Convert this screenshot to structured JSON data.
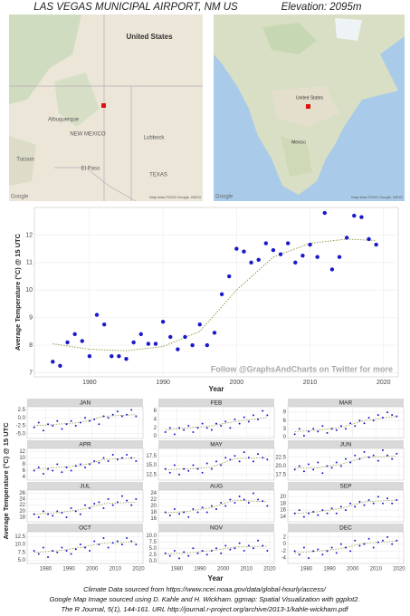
{
  "header": {
    "title": "LAS VEGAS MUNICIPAL AIRPORT, NM US",
    "elevation": "Elevation: 2095m"
  },
  "maps": [
    {
      "labels": [
        "United States",
        "Albuquerque",
        "NEW MEXICO",
        "Lubbock",
        "Tucson",
        "El Paso",
        "TEXAS"
      ],
      "credit": "Map data ©2020 Google, INEGI",
      "logo": "Google"
    },
    {
      "labels": [
        "United States",
        "Mexico"
      ],
      "credit": "Map data ©2020 Google, INEGI",
      "logo": "Google"
    }
  ],
  "chart_data": [
    {
      "type": "scatter",
      "xlabel": "Year",
      "ylabel": "Average Temperature (°C) @ 15 UTC",
      "annotation": "Follow @GraphsAndCharts on Twitter for more",
      "x": [
        1975,
        1976,
        1977,
        1978,
        1979,
        1980,
        1981,
        1982,
        1983,
        1984,
        1985,
        1986,
        1987,
        1988,
        1989,
        1990,
        1991,
        1992,
        1993,
        1994,
        1995,
        1996,
        1997,
        1998,
        1999,
        2000,
        2001,
        2002,
        2003,
        2004,
        2005,
        2006,
        2007,
        2008,
        2009,
        2010,
        2011,
        2012,
        2013,
        2014,
        2015,
        2016,
        2017,
        2018,
        2019
      ],
      "values": [
        7.4,
        7.25,
        8.1,
        8.4,
        8.15,
        7.6,
        9.1,
        8.75,
        7.6,
        7.6,
        7.5,
        8.1,
        8.4,
        8.05,
        8.05,
        8.85,
        8.3,
        7.85,
        8.3,
        8.0,
        8.75,
        8.0,
        8.45,
        9.85,
        10.5,
        11.5,
        11.4,
        11.0,
        11.1,
        11.7,
        11.45,
        11.3,
        11.7,
        11.0,
        11.25,
        11.65,
        11.2,
        12.8,
        10.75,
        11.2,
        11.9,
        12.7,
        12.65,
        11.85,
        11.65
      ],
      "color": "#1a1acc",
      "trend_x": [
        1975,
        1980,
        1985,
        1990,
        1995,
        2000,
        2005,
        2010,
        2015,
        2019
      ],
      "trend": [
        8.05,
        7.85,
        7.8,
        7.95,
        8.5,
        10,
        11.2,
        11.7,
        11.85,
        11.8
      ],
      "trend_color": "#9a9a4a",
      "xlim": [
        1972.5,
        2022
      ],
      "xticks": [
        1980,
        1990,
        2000,
        2010,
        2020
      ],
      "ylim": [
        6.85,
        13
      ],
      "yticks": [
        7,
        8,
        9,
        10,
        11,
        12
      ],
      "grid": true
    },
    {
      "type": "scatter",
      "xlabel": "Year",
      "ylabel": "Average Temperature (°C) @ 15 UTC",
      "x": [
        1975,
        1977,
        1979,
        1981,
        1983,
        1985,
        1987,
        1989,
        1991,
        1993,
        1995,
        1997,
        1999,
        2001,
        2003,
        2005,
        2007,
        2009,
        2011,
        2013,
        2015,
        2017,
        2019
      ],
      "xlim": [
        1972,
        2022
      ],
      "xticks": [
        1980,
        1990,
        2000,
        2010,
        2020
      ],
      "trend_x": [
        1975,
        1985,
        1995,
        2005,
        2019
      ],
      "color": "#1a1acc",
      "trend_color": "#9a9a4a",
      "grid": true,
      "panels": [
        {
          "title": "JAN",
          "ylim": [
            -6.5,
            3.5
          ],
          "yticks": [
            {
              "value": -5,
              "label": "-5.0"
            },
            {
              "value": -2.5,
              "label": "-2.5"
            },
            {
              "value": 0,
              "label": "0.0"
            },
            {
              "value": 2.5,
              "label": "2.5"
            }
          ],
          "values": [
            -3,
            -1.5,
            -4,
            -2,
            -2.5,
            -1,
            -3.5,
            -2,
            -1,
            -2.5,
            -1.5,
            0,
            -1,
            -0.5,
            -2,
            0.5,
            0,
            1,
            2,
            0.5,
            1,
            2.5,
            0.5
          ],
          "trend": [
            -2.5,
            -2,
            -1.5,
            0.5,
            1
          ]
        },
        {
          "title": "FEB",
          "ylim": [
            -0.5,
            7
          ],
          "yticks": [
            0,
            2,
            4,
            6
          ],
          "values": [
            1,
            2,
            0.5,
            2,
            1.5,
            2.5,
            1,
            2,
            3,
            2,
            1.5,
            3,
            2.5,
            3.5,
            2,
            4,
            3,
            4.5,
            3.5,
            5,
            4,
            6,
            5
          ],
          "trend": [
            1.5,
            2,
            2.5,
            3.5,
            4.5
          ]
        },
        {
          "title": "MAR",
          "ylim": [
            -0.5,
            11
          ],
          "yticks": [
            0,
            3,
            6,
            9
          ],
          "values": [
            1,
            3,
            0.5,
            2,
            3,
            2,
            4,
            1.5,
            3,
            2.5,
            4,
            3,
            5,
            4,
            6,
            5,
            7,
            6,
            8,
            7,
            9,
            8,
            7.5
          ],
          "trend": [
            2,
            2.5,
            3.5,
            6,
            7.5
          ]
        },
        {
          "title": "APR",
          "ylim": [
            3,
            13
          ],
          "yticks": [
            4,
            6,
            8,
            10,
            12
          ],
          "values": [
            6,
            7,
            5,
            6.5,
            6,
            8,
            5.5,
            7,
            6,
            7.5,
            8,
            7,
            8,
            9,
            8.5,
            10,
            9,
            11,
            9.5,
            10,
            11,
            10,
            9
          ],
          "trend": [
            6.5,
            7,
            7.5,
            9.5,
            10
          ]
        },
        {
          "title": "MAY",
          "ylim": [
            11,
            19.5
          ],
          "yticks": [
            12.5,
            {
              "value": 15,
              "label": "15.0"
            },
            17.5
          ],
          "values": [
            14,
            13,
            15,
            12.5,
            14,
            13.5,
            15,
            14,
            13,
            15.5,
            14,
            16,
            15,
            17,
            16.5,
            17.5,
            16,
            18.5,
            17,
            16,
            18,
            17,
            16.5
          ],
          "trend": [
            13.8,
            14,
            14.5,
            16.8,
            17
          ]
        },
        {
          "title": "JUN",
          "ylim": [
            16,
            25
          ],
          "yticks": [
            17.5,
            {
              "value": 20,
              "label": "20.0"
            },
            22.5
          ],
          "values": [
            19,
            20,
            18.5,
            20.5,
            19,
            21,
            18,
            20,
            19.5,
            21,
            20,
            22,
            21,
            23,
            22,
            24,
            22.5,
            23,
            21.5,
            24.5,
            23,
            22,
            23.5
          ],
          "trend": [
            19.5,
            19.5,
            20.5,
            22.5,
            22.8
          ]
        },
        {
          "title": "JUL",
          "ylim": [
            16.5,
            27
          ],
          "yticks": [
            18,
            20,
            22,
            24,
            26
          ],
          "values": [
            19,
            18,
            20,
            19,
            18.5,
            20,
            19.5,
            18,
            21,
            20,
            19,
            22,
            21,
            22.5,
            23,
            21,
            24,
            22,
            23,
            25,
            23.5,
            22,
            24
          ],
          "trend": [
            19,
            19.5,
            20.5,
            22.5,
            23
          ]
        },
        {
          "title": "AUG",
          "ylim": [
            15,
            25
          ],
          "yticks": [
            16,
            18,
            20,
            22,
            24
          ],
          "values": [
            18,
            17,
            19,
            17.5,
            18,
            16.5,
            19,
            18,
            19.5,
            18,
            20,
            19,
            21,
            20,
            22,
            21,
            23,
            22,
            21,
            24,
            22,
            21.5,
            20
          ],
          "trend": [
            17.8,
            18.3,
            19.5,
            21.8,
            21.3
          ]
        },
        {
          "title": "SEP",
          "ylim": [
            12.5,
            22
          ],
          "yticks": [
            14,
            16,
            18,
            20
          ],
          "values": [
            15,
            16,
            14,
            15,
            15.5,
            14.5,
            16,
            15,
            16.5,
            15,
            17,
            16,
            18,
            17,
            18.5,
            17.5,
            19,
            18,
            20,
            18,
            19.5,
            18,
            19
          ],
          "trend": [
            15,
            15.5,
            16.5,
            18.5,
            19
          ]
        },
        {
          "title": "OCT",
          "ylim": [
            4,
            14
          ],
          "yticks": [
            {
              "value": 5,
              "label": "5.0"
            },
            7.5,
            {
              "value": 10,
              "label": "10.0"
            },
            12.5
          ],
          "values": [
            8,
            7,
            9,
            6,
            8,
            7.5,
            9,
            8,
            7,
            8.5,
            10,
            9,
            8,
            11,
            10,
            12,
            9,
            10.5,
            11,
            10,
            12,
            11,
            10
          ],
          "trend": [
            7.5,
            8,
            9,
            10.5,
            10.8
          ]
        },
        {
          "title": "NOV",
          "ylim": [
            -1,
            11.5
          ],
          "yticks": [
            {
              "value": 0,
              "label": "0.0"
            },
            2.5,
            {
              "value": 5,
              "label": "5.0"
            },
            7.5,
            {
              "value": 10,
              "label": "10.0"
            }
          ],
          "values": [
            3,
            2,
            4,
            1,
            3.5,
            2,
            5,
            3,
            4,
            2.5,
            4,
            5,
            3,
            6,
            4.5,
            5,
            7,
            4,
            6,
            5,
            8,
            6,
            4
          ],
          "trend": [
            2.8,
            3.3,
            4,
            5.5,
            5.8
          ]
        },
        {
          "title": "DEC",
          "ylim": [
            -5.5,
            3.5
          ],
          "yticks": [
            -4,
            -2,
            0,
            2
          ],
          "values": [
            -2,
            -3,
            -1,
            -4,
            -2,
            -1.5,
            -3,
            -2,
            -1,
            -2.5,
            0,
            -1,
            -2,
            1,
            -0.5,
            0,
            1.5,
            -1,
            0.5,
            1,
            2,
            0,
            1
          ],
          "trend": [
            -2.5,
            -2,
            -1.3,
            0.3,
            0.8
          ]
        }
      ]
    }
  ],
  "footer": [
    "Climate Data sourced from https://www.ncei.noaa.gov/data/global-hourly/access/",
    "Google Map Image sourced using D. Kahle and H. Wickham. ggmap: Spatial Visualization with ggplot2.",
    "The R Journal, 5(1), 144-161. URL http://journal.r-project.org/archive/2013-1/kahle-wickham.pdf"
  ]
}
